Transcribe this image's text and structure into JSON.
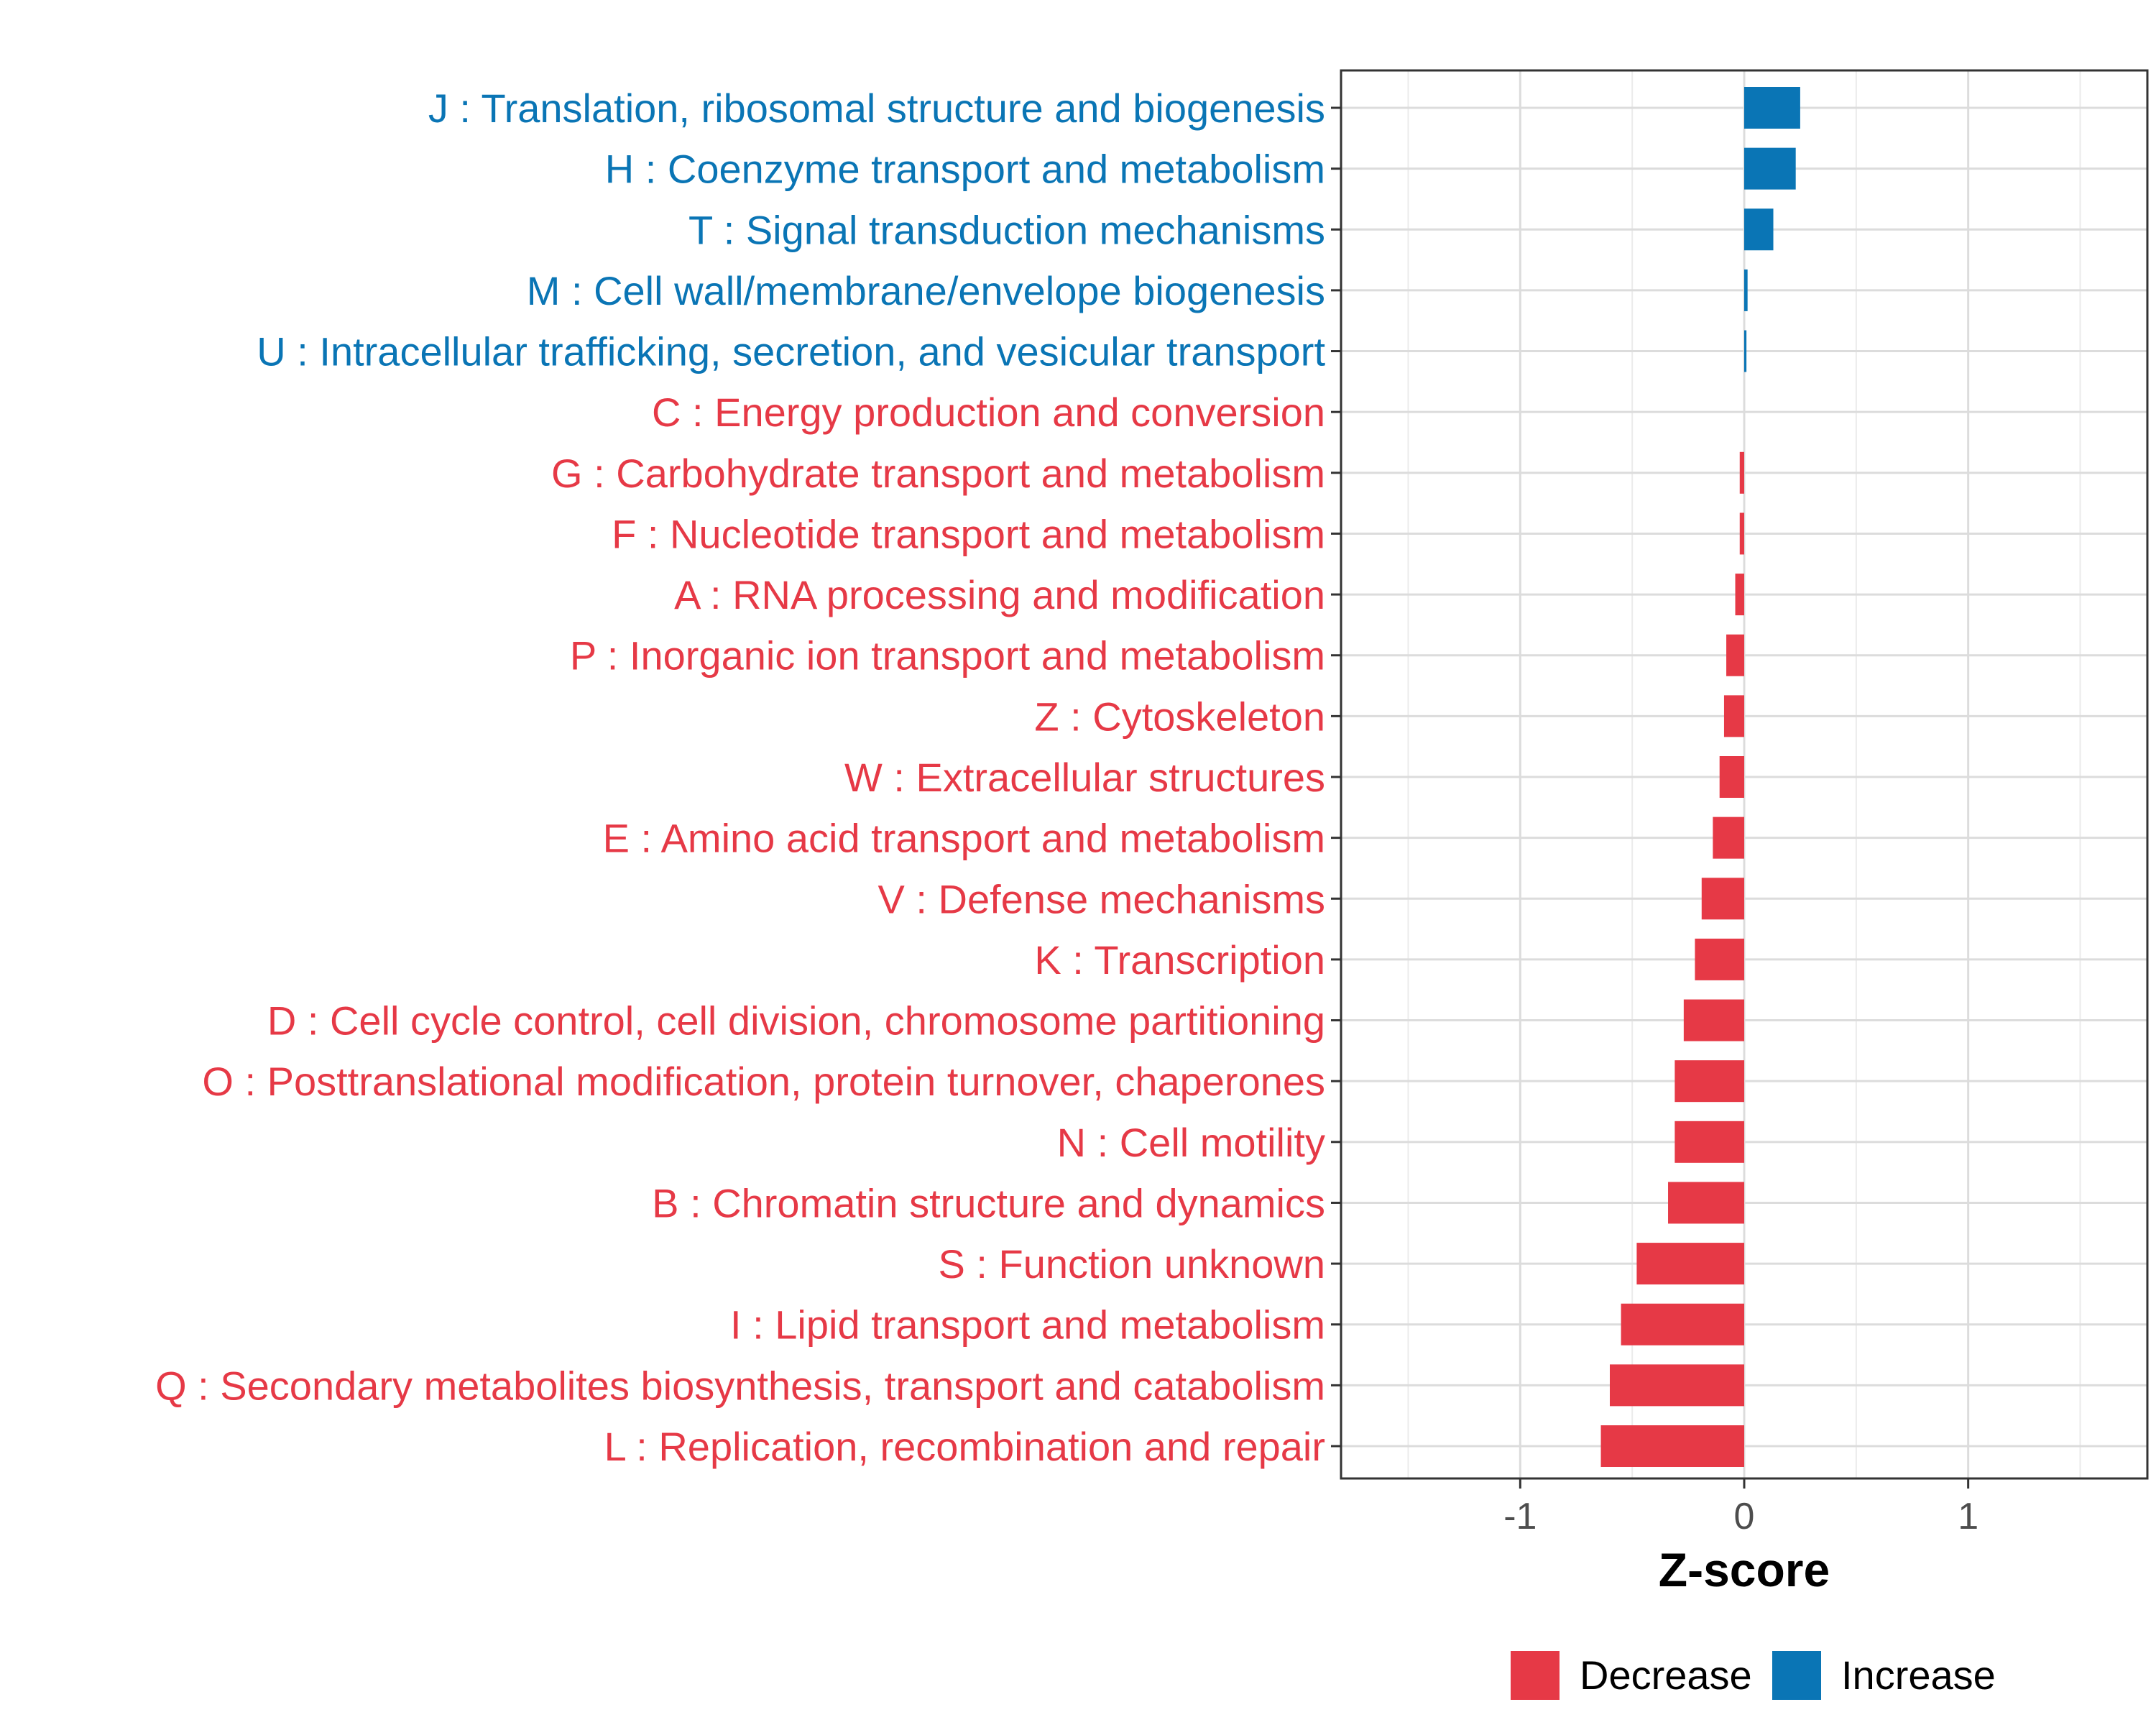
{
  "chart_data": {
    "type": "bar",
    "orientation": "horizontal",
    "xlabel": "Z-score",
    "ylabel": "",
    "xlim": [
      -1.8,
      1.8
    ],
    "x_ticks": [
      {
        "value": -1,
        "label": "-1"
      },
      {
        "value": 0,
        "label": "0"
      },
      {
        "value": 1,
        "label": "1"
      }
    ],
    "grid": true,
    "colors": {
      "Decrease": "#e63946",
      "Increase": "#0a75b5"
    },
    "legend": {
      "position": "bottom",
      "entries": [
        {
          "key": "Decrease",
          "label": "Decrease"
        },
        {
          "key": "Increase",
          "label": "Increase"
        }
      ]
    },
    "categories": [
      {
        "label": "J : Translation, ribosomal structure and biogenesis",
        "value": 0.25,
        "direction": "Increase"
      },
      {
        "label": "H : Coenzyme transport and metabolism",
        "value": 0.23,
        "direction": "Increase"
      },
      {
        "label": "T : Signal transduction mechanisms",
        "value": 0.13,
        "direction": "Increase"
      },
      {
        "label": "M : Cell wall/membrane/envelope biogenesis",
        "value": 0.015,
        "direction": "Increase"
      },
      {
        "label": "U : Intracellular trafficking, secretion, and vesicular transport",
        "value": 0.01,
        "direction": "Increase"
      },
      {
        "label": "C : Energy production and conversion",
        "value": 0.0,
        "direction": "Decrease"
      },
      {
        "label": "G : Carbohydrate transport and metabolism",
        "value": -0.02,
        "direction": "Decrease"
      },
      {
        "label": "F : Nucleotide transport and metabolism",
        "value": -0.02,
        "direction": "Decrease"
      },
      {
        "label": "A : RNA processing and modification",
        "value": -0.04,
        "direction": "Decrease"
      },
      {
        "label": "P : Inorganic ion transport and metabolism",
        "value": -0.08,
        "direction": "Decrease"
      },
      {
        "label": "Z : Cytoskeleton",
        "value": -0.09,
        "direction": "Decrease"
      },
      {
        "label": "W : Extracellular structures",
        "value": -0.11,
        "direction": "Decrease"
      },
      {
        "label": "E : Amino acid transport and metabolism",
        "value": -0.14,
        "direction": "Decrease"
      },
      {
        "label": "V : Defense mechanisms",
        "value": -0.19,
        "direction": "Decrease"
      },
      {
        "label": "K : Transcription",
        "value": -0.22,
        "direction": "Decrease"
      },
      {
        "label": "D : Cell cycle control, cell division, chromosome partitioning",
        "value": -0.27,
        "direction": "Decrease"
      },
      {
        "label": "O : Posttranslational modification, protein turnover, chaperones",
        "value": -0.31,
        "direction": "Decrease"
      },
      {
        "label": "N : Cell motility",
        "value": -0.31,
        "direction": "Decrease"
      },
      {
        "label": "B : Chromatin structure and dynamics",
        "value": -0.34,
        "direction": "Decrease"
      },
      {
        "label": "S : Function unknown",
        "value": -0.48,
        "direction": "Decrease"
      },
      {
        "label": "I : Lipid transport and metabolism",
        "value": -0.55,
        "direction": "Decrease"
      },
      {
        "label": "Q : Secondary metabolites biosynthesis, transport and catabolism",
        "value": -0.6,
        "direction": "Decrease"
      },
      {
        "label": "L : Replication, recombination and repair",
        "value": -0.64,
        "direction": "Decrease"
      }
    ]
  }
}
